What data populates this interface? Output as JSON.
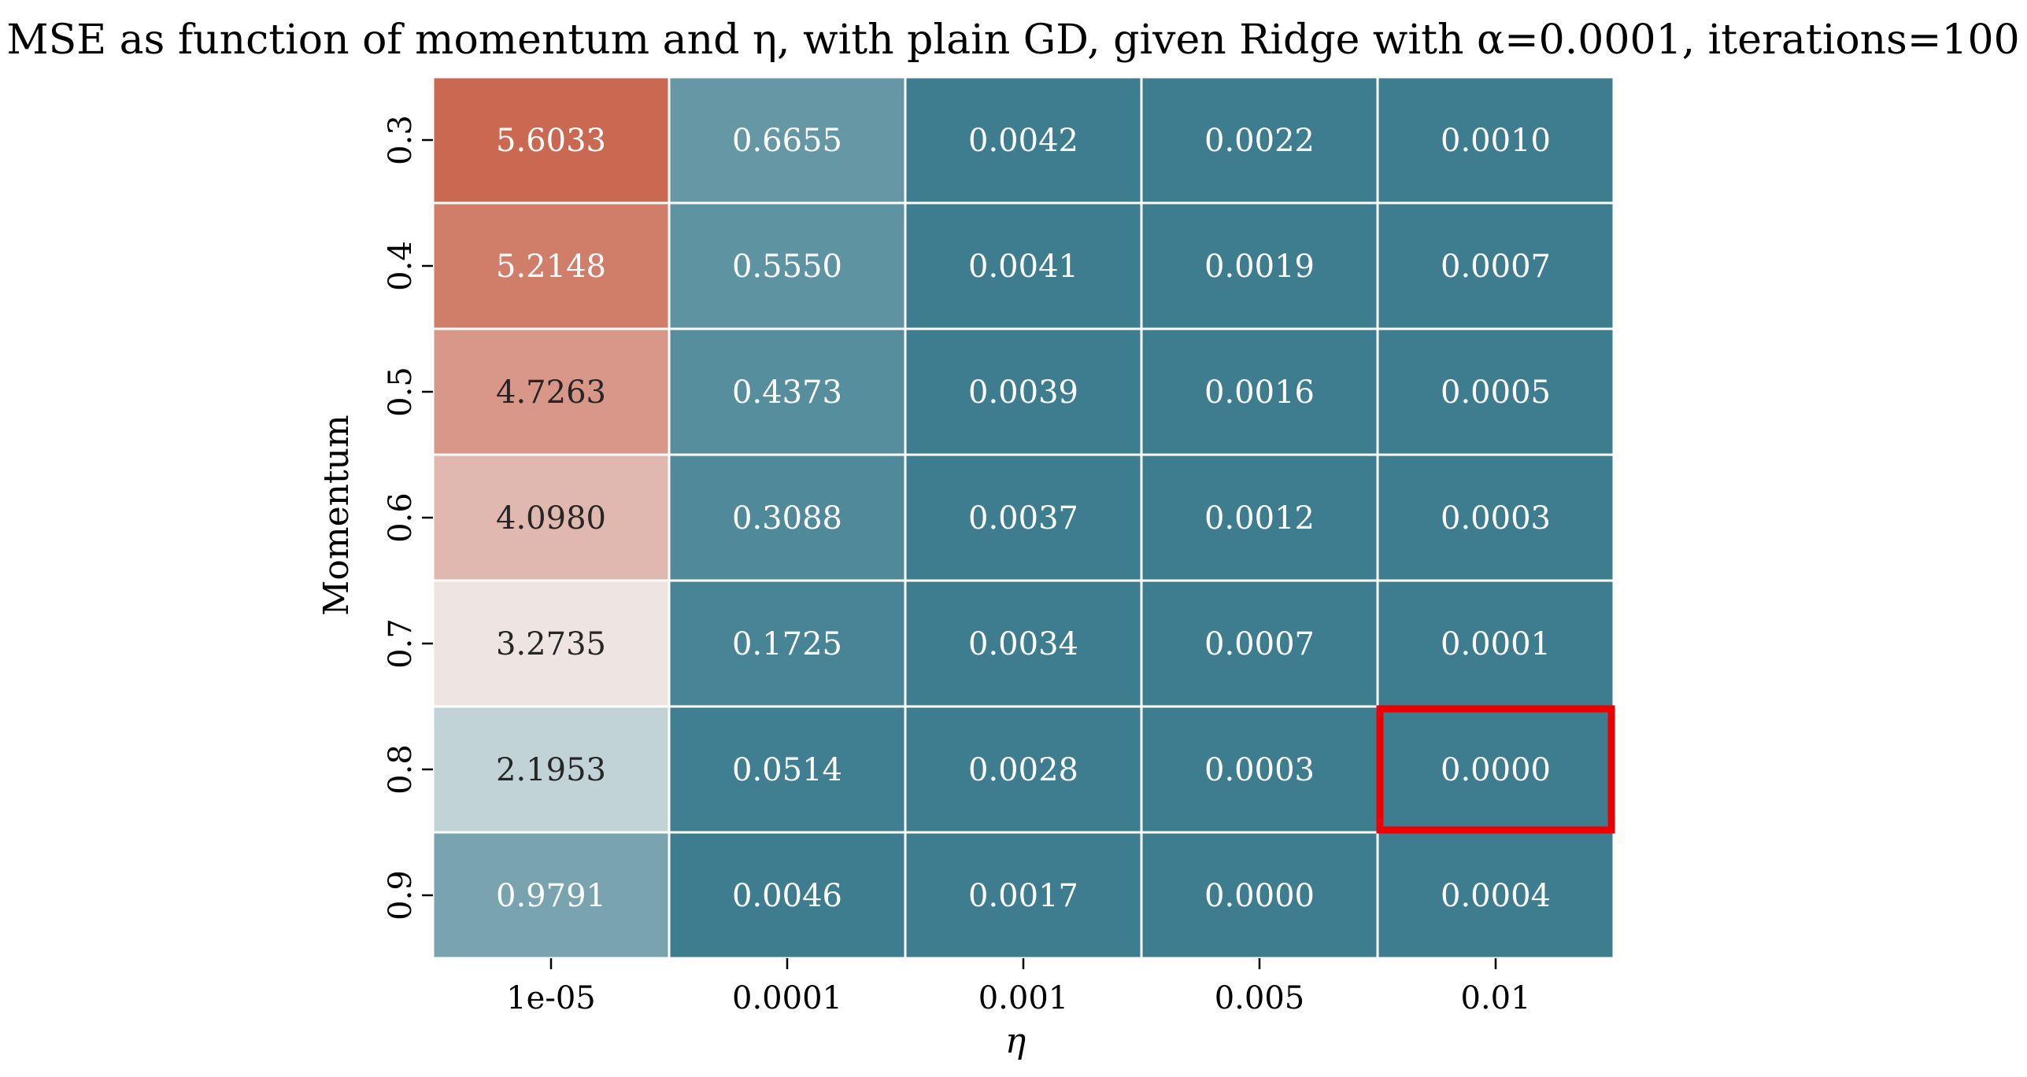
{
  "chart_data": {
    "type": "heatmap",
    "title": "MSE as function of momentum and η, with plain GD, given Ridge with α=0.0001, iterations=100",
    "xlabel": "η",
    "ylabel": "Momentum",
    "x_categories": [
      "1e-05",
      "0.0001",
      "0.001",
      "0.005",
      "0.01"
    ],
    "y_categories": [
      "0.3",
      "0.4",
      "0.5",
      "0.6",
      "0.7",
      "0.8",
      "0.9"
    ],
    "values": [
      [
        "5.6033",
        "0.6655",
        "0.0042",
        "0.0022",
        "0.0010"
      ],
      [
        "5.2148",
        "0.5550",
        "0.0041",
        "0.0019",
        "0.0007"
      ],
      [
        "4.7263",
        "0.4373",
        "0.0039",
        "0.0016",
        "0.0005"
      ],
      [
        "4.0980",
        "0.3088",
        "0.0037",
        "0.0012",
        "0.0003"
      ],
      [
        "3.2735",
        "0.1725",
        "0.0034",
        "0.0007",
        "0.0001"
      ],
      [
        "2.1953",
        "0.0514",
        "0.0028",
        "0.0003",
        "0.0000"
      ],
      [
        "0.9791",
        "0.0046",
        "0.0017",
        "0.0000",
        "0.0004"
      ]
    ],
    "colormap": {
      "low": "#3d7d8f",
      "mid": "#f2f2f2",
      "high": "#c4533a",
      "center_value": 3.0
    },
    "grid": false,
    "cell_border_color": "#ffffff",
    "dark_text_color": "#262626",
    "light_text_color": "#ffffff",
    "highlight": {
      "row": 5,
      "col": 4,
      "color": "#ee0000"
    }
  }
}
